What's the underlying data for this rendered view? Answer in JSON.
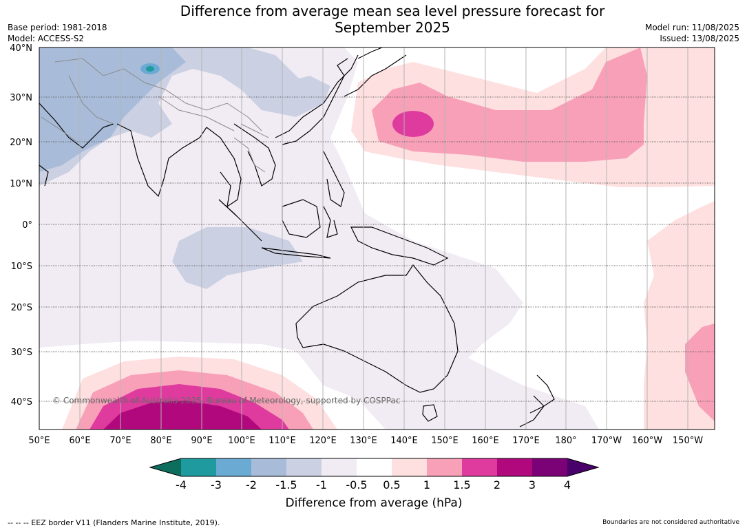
{
  "title": {
    "line1": "Difference from average mean sea level pressure forecast for",
    "line2": "September 2025"
  },
  "meta_left": {
    "base_period": "Base period: 1981-2018",
    "model": "Model: ACCESS-S2"
  },
  "meta_right": {
    "model_run": "Model run: 11/08/2025",
    "issued": "Issued: 13/08/2025"
  },
  "map": {
    "lat_labels": [
      "40°N",
      "30°N",
      "20°N",
      "10°N",
      "0°",
      "10°S",
      "20°S",
      "30°S",
      "40°S"
    ],
    "lon_labels": [
      "50°E",
      "60°E",
      "70°E",
      "80°E",
      "90°E",
      "100°E",
      "110°E",
      "120°E",
      "130°E",
      "140°E",
      "150°E",
      "160°E",
      "170°E",
      "180°",
      "170°W",
      "160°W",
      "150°W"
    ],
    "copyright": "© Commonwealth of Australia 2025, Bureau of Meteorology, supported by COSPPac"
  },
  "colorbar": {
    "tick_labels": [
      "-4",
      "-3",
      "-2",
      "-1.5",
      "-1",
      "-0.5",
      "0.5",
      "1",
      "1.5",
      "2",
      "3",
      "4"
    ],
    "label": "Difference from average (hPa)",
    "colors": {
      "below_-4": "#0e6e5e",
      "-4_-3": "#1f9a9e",
      "-3_-2": "#6aaad3",
      "-2_-1.5": "#a8bcd9",
      "-1.5_-1": "#ccd0e3",
      "-1_-0.5": "#f1ecf4",
      "-0.5_0.5": "#ffffff",
      "0.5_1": "#fde0df",
      "1_1.5": "#f9a0b9",
      "1.5_2": "#df3b9e",
      "2_3": "#b1097d",
      "3_4": "#7b0276",
      "above_4": "#4a006a"
    }
  },
  "footer": {
    "left": "--  --  -- EEZ border V11 (Flanders Marine Institute, 2019).",
    "right": "Boundaries are not considered authoritative"
  }
}
